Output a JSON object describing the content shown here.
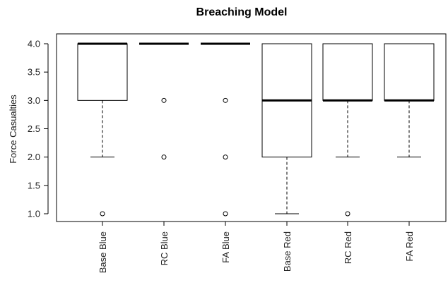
{
  "chart_data": {
    "type": "boxplot",
    "title": "Breaching Model",
    "xlabel": "",
    "ylabel": "Force Casualties",
    "ylim": [
      1.0,
      4.0
    ],
    "yticks": [
      "1.0",
      "1.5",
      "2.0",
      "2.5",
      "3.0",
      "3.5",
      "4.0"
    ],
    "categories": [
      "Base Blue",
      "RC Blue",
      "FA Blue",
      "Base Red",
      "RC Red",
      "FA Red"
    ],
    "boxes": [
      {
        "category": "Base Blue",
        "q1": 3.0,
        "median": 4.0,
        "q3": 4.0,
        "whisker_low": 2.0,
        "whisker_high": 4.0,
        "outliers": [
          1.0
        ]
      },
      {
        "category": "RC Blue",
        "q1": 4.0,
        "median": 4.0,
        "q3": 4.0,
        "whisker_low": 4.0,
        "whisker_high": 4.0,
        "outliers": [
          3.0,
          2.0
        ]
      },
      {
        "category": "FA Blue",
        "q1": 4.0,
        "median": 4.0,
        "q3": 4.0,
        "whisker_low": 4.0,
        "whisker_high": 4.0,
        "outliers": [
          3.0,
          2.0,
          1.0
        ]
      },
      {
        "category": "Base Red",
        "q1": 2.0,
        "median": 3.0,
        "q3": 4.0,
        "whisker_low": 1.0,
        "whisker_high": 4.0,
        "outliers": []
      },
      {
        "category": "RC Red",
        "q1": 3.0,
        "median": 3.0,
        "q3": 4.0,
        "whisker_low": 2.0,
        "whisker_high": 4.0,
        "outliers": [
          1.0
        ]
      },
      {
        "category": "FA Red",
        "q1": 3.0,
        "median": 3.0,
        "q3": 4.0,
        "whisker_low": 2.0,
        "whisker_high": 4.0,
        "outliers": []
      }
    ],
    "grid": false,
    "colors": {
      "box_fill": "#ffffff",
      "stroke": "#000000"
    }
  }
}
